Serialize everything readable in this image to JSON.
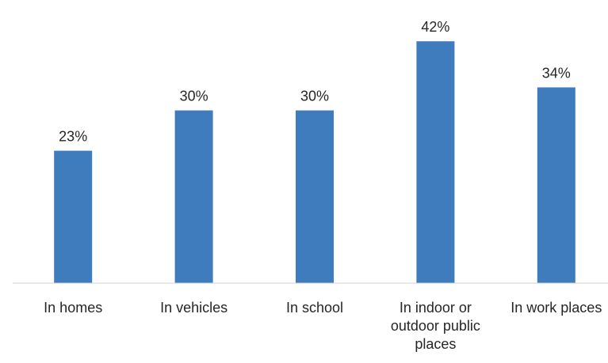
{
  "chart_data": {
    "type": "bar",
    "title": "",
    "xlabel": "",
    "ylabel": "",
    "categories": [
      [
        "In homes"
      ],
      [
        "In vehicles"
      ],
      [
        "In school"
      ],
      [
        "In indoor or",
        "outdoor public",
        "places"
      ],
      [
        "In work places"
      ]
    ],
    "values": [
      23,
      30,
      30,
      42,
      34
    ],
    "data_labels": [
      "23%",
      "30%",
      "30%",
      "42%",
      "34%"
    ],
    "unit": "%",
    "ylim": [
      0,
      45
    ],
    "grid": false,
    "legend": "none",
    "colors": {
      "bar": "#3f7cbd",
      "axis": "#d0d0d0",
      "text": "#262626"
    }
  }
}
